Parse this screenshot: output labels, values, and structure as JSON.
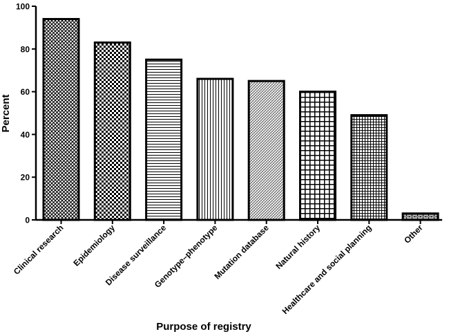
{
  "chart_data": {
    "type": "bar",
    "title": "",
    "xlabel": "Purpose of registry",
    "ylabel": "Percent",
    "ylim": [
      0,
      100
    ],
    "yticks": [
      0,
      20,
      40,
      60,
      80,
      100
    ],
    "grid": false,
    "categories": [
      "Clinical research",
      "Epidemiology",
      "Disease surveillance",
      "Genotype–phenotype",
      "Mutation database",
      "Natural history",
      "Healthcare and social planning",
      "Other"
    ],
    "values": [
      94,
      83,
      75,
      66,
      65,
      60,
      49,
      3
    ],
    "fills": [
      "diamond",
      "checker",
      "hlines",
      "vlines",
      "fine-diag",
      "grid",
      "fine-grid",
      "brick"
    ]
  }
}
